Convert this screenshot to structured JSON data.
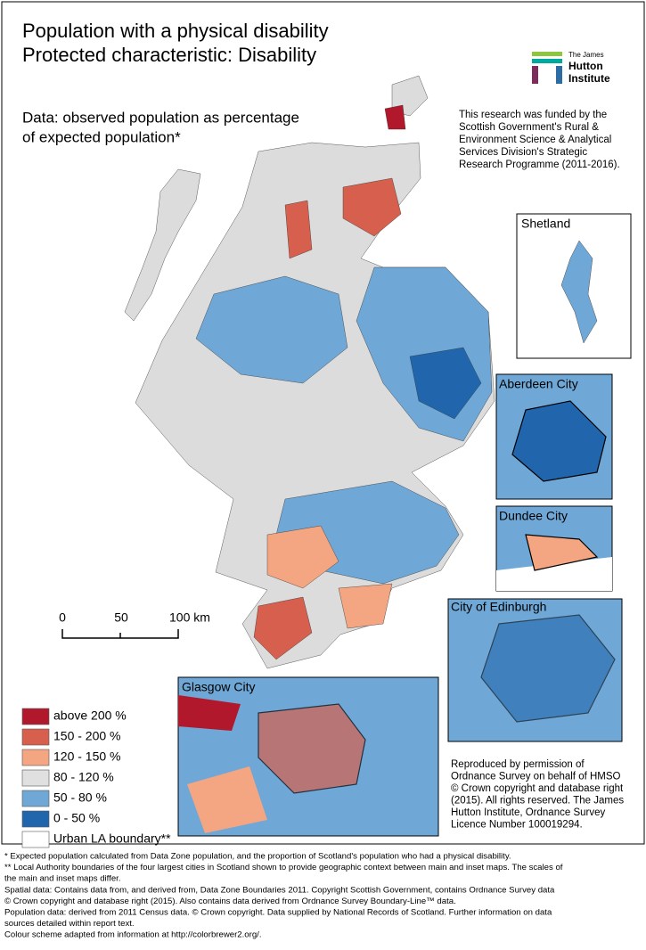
{
  "header": {
    "title_lines": [
      "Population with a physical disability",
      "Protected characteristic: Disability"
    ],
    "subtitle_lines": [
      "Data: observed population as percentage",
      "of expected population*"
    ]
  },
  "logo": {
    "lines": [
      "The James",
      "Hutton",
      "Institute"
    ]
  },
  "funding": {
    "lines": [
      "This research was funded by the",
      "Scottish Government's Rural &",
      "Environment Science & Analytical",
      "Services Division's Strategic",
      "Research Programme (2011-2016)."
    ]
  },
  "insets": {
    "shetland": "Shetland",
    "aberdeen": "Aberdeen City",
    "dundee": "Dundee City",
    "edinburgh": "City of Edinburgh",
    "glasgow": "Glasgow City"
  },
  "scale_bar": {
    "labels": [
      "0",
      "50",
      "100 km"
    ]
  },
  "legend": {
    "items": [
      {
        "label": "above 200 %",
        "color": "#b2182b"
      },
      {
        "label": "150 - 200 %",
        "color": "#d6604d"
      },
      {
        "label": "120 - 150 %",
        "color": "#f4a582"
      },
      {
        "label": "80 - 120 %",
        "color": "#e0e0e0"
      },
      {
        "label": "50 - 80 %",
        "color": "#6fa8d6"
      },
      {
        "label": "0 - 50 %",
        "color": "#2166ac"
      },
      {
        "label": "Urban LA boundary**",
        "color": "#ffffff"
      }
    ]
  },
  "attribution": {
    "lines": [
      "Reproduced by permission of",
      "Ordnance Survey on behalf of HMSO",
      "© Crown copyright and database right",
      "(2015). All rights reserved. The James",
      "Hutton Institute, Ordnance Survey",
      "Licence Number 100019294."
    ]
  },
  "footnotes": {
    "lines": [
      "* Expected population calculated from Data Zone population, and the proportion of Scotland's population who had a physical disability.",
      "** Local Authority boundaries of the four largest cities in Scotland shown to provide geographic context between main and inset maps. The scales of",
      "the main and inset maps differ.",
      "Spatial data: Contains data from, and derived from, Data Zone Boundaries 2011. Copyright Scottish Government, contains Ordnance Survey data",
      "© Crown copyright and database right (2015). Also contains data derived from Ordnance Survey Boundary-Line™ data.",
      "Population data: derived from 2011 Census data. © Crown copyright. Data supplied by National Records of Scotland. Further information on data",
      "sources detailed within report text.",
      "Colour scheme adapted from information at http://colorbrewer2.org/."
    ]
  }
}
